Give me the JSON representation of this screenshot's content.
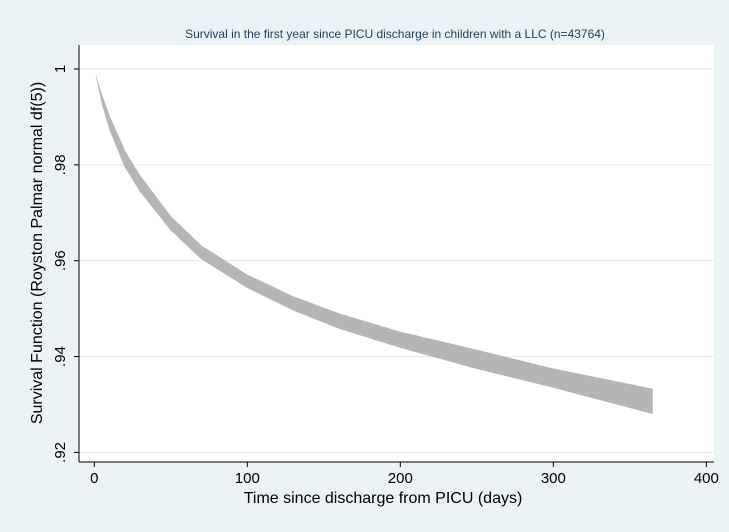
{
  "chart_data": {
    "type": "area",
    "title": "Survival in the first year since PICU discharge in children with a LLC (n=43764)",
    "xlabel": "Time since discharge from PICU (days)",
    "ylabel": "Survival Function (Royston Palmar normal df(5))",
    "xlim": [
      -10,
      405
    ],
    "ylim": [
      0.918,
      1.005
    ],
    "x_ticks": [
      0,
      100,
      200,
      300,
      400
    ],
    "x_tick_labels": [
      "0",
      "100",
      "200",
      "300",
      "400"
    ],
    "y_ticks": [
      0.92,
      0.94,
      0.96,
      0.98,
      1.0
    ],
    "y_tick_labels": [
      ".92",
      ".94",
      ".96",
      ".98",
      "1"
    ],
    "grid": true,
    "band_color": "#b5b5b5",
    "series": [
      {
        "x": [
          1,
          5,
          10,
          20,
          30,
          50,
          70,
          100,
          130,
          160,
          200,
          250,
          300,
          365
        ],
        "lower": [
          0.9985,
          0.9925,
          0.9872,
          0.9794,
          0.9743,
          0.9663,
          0.9603,
          0.9543,
          0.9496,
          0.9458,
          0.9418,
          0.9374,
          0.9335,
          0.928
        ],
        "upper": [
          0.9988,
          0.9946,
          0.9903,
          0.983,
          0.9778,
          0.9693,
          0.9632,
          0.9571,
          0.9526,
          0.949,
          0.9452,
          0.9414,
          0.9375,
          0.9333
        ]
      }
    ]
  }
}
